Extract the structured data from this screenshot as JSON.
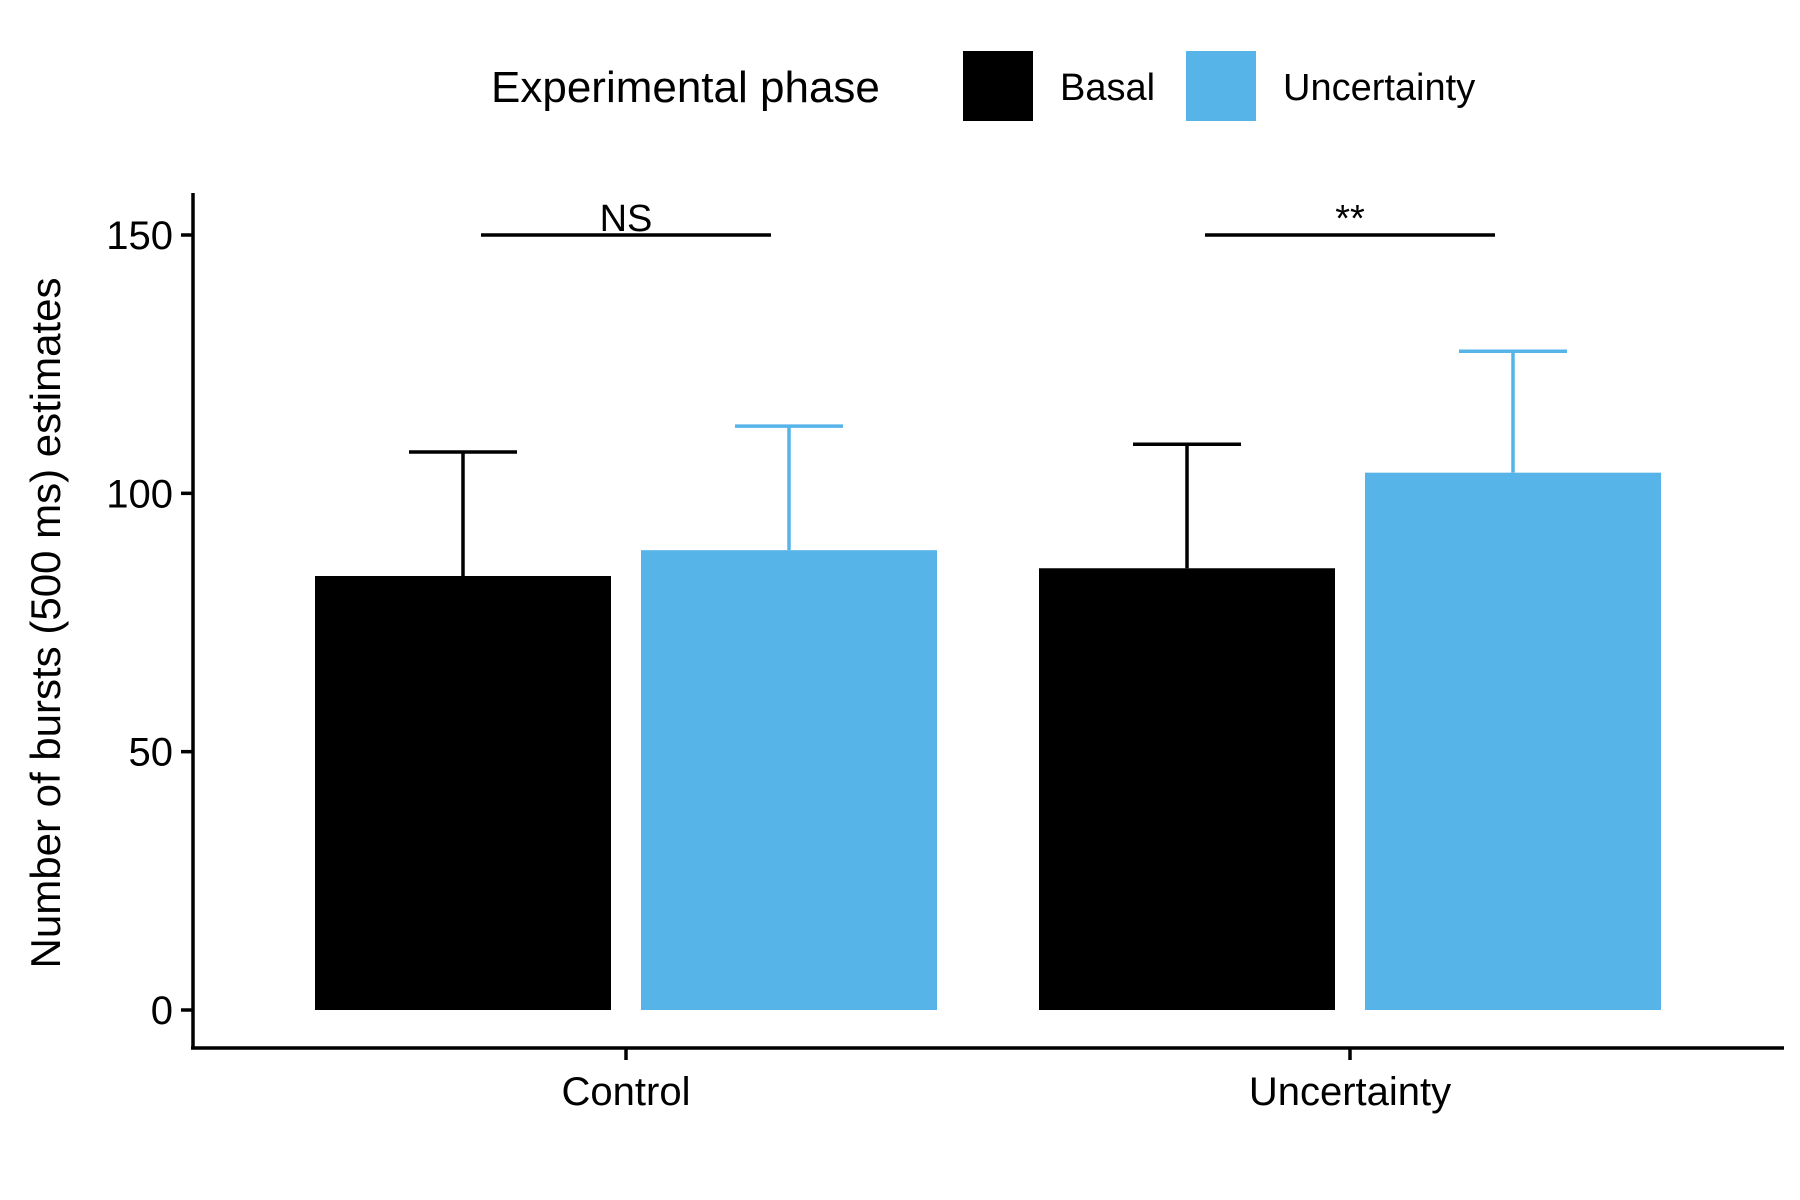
{
  "chart_data": {
    "type": "bar",
    "categories": [
      "Control",
      "Uncertainty"
    ],
    "series": [
      {
        "name": "Basal",
        "color": "#000000",
        "values": [
          84,
          85.5
        ],
        "error_upper": [
          108,
          109.5
        ]
      },
      {
        "name": "Uncertainty",
        "color": "#56b4e9",
        "values": [
          89,
          104
        ],
        "error_upper": [
          113,
          127.5
        ]
      }
    ],
    "ylabel": "Number of bursts (500 ms) estimates",
    "xlabel": "",
    "ylim": [
      -7,
      157
    ],
    "yticks": [
      0,
      50,
      100,
      150
    ],
    "legend": {
      "title": "Experimental phase",
      "position": "top"
    },
    "annotations": [
      {
        "category": "Control",
        "label": "NS",
        "y": 150
      },
      {
        "category": "Uncertainty",
        "label": "**",
        "y": 150
      }
    ],
    "grid": false
  }
}
